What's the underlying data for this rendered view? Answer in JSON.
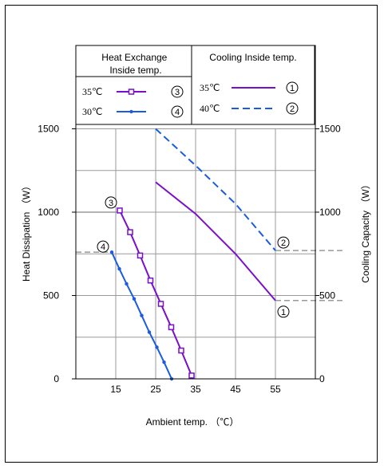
{
  "chart_data": {
    "type": "line",
    "xlabel": "Ambient temp. （℃）",
    "ylabel_left": "Heat Dissipation （W）",
    "ylabel_right": "Cooling Capacity （W）",
    "x_ticks": [
      "15",
      "25",
      "35",
      "45",
      "55"
    ],
    "xlim": [
      5,
      65
    ],
    "left_y_ticks": [
      "0",
      "500",
      "1000",
      "1500"
    ],
    "right_y_ticks": [
      "0",
      "500",
      "1000",
      "1500"
    ],
    "ylim": [
      0,
      2000
    ],
    "grid": true,
    "legend": {
      "heat_exchange_title": "Heat Exchange\nInside temp.",
      "cooling_title": "Cooling Inside temp.",
      "placement": "top"
    },
    "series": [
      {
        "id": "1",
        "marker_label": "①",
        "group": "cooling",
        "name": "35℃",
        "color": "#7a0fc9",
        "dash": "solid",
        "marker": "none",
        "x": [
          25,
          35,
          45,
          55
        ],
        "y": [
          1180,
          990,
          750,
          470
        ]
      },
      {
        "id": "2",
        "marker_label": "②",
        "group": "cooling",
        "name": "40℃",
        "color": "#1a5be0",
        "dash": "dashed",
        "marker": "none",
        "x": [
          25,
          35,
          45,
          55
        ],
        "y": [
          1500,
          1280,
          1050,
          770
        ]
      },
      {
        "id": "3",
        "marker_label": "③",
        "group": "heat",
        "name": "35℃",
        "color": "#7a0fc9",
        "dash": "solid",
        "marker": "square",
        "x": [
          16,
          18.6,
          21.1,
          23.7,
          26.3,
          28.9,
          31.4,
          34
        ],
        "y": [
          1010,
          880,
          740,
          590,
          450,
          310,
          170,
          20
        ]
      },
      {
        "id": "4",
        "marker_label": "④",
        "group": "heat",
        "name": "30℃",
        "color": "#1a5be0",
        "dash": "solid",
        "marker": "dot",
        "x": [
          14,
          15.9,
          17.7,
          19.6,
          21.5,
          23.4,
          25.3,
          27.1,
          29
        ],
        "y": [
          760,
          660,
          570,
          480,
          380,
          280,
          190,
          100,
          0
        ]
      }
    ],
    "reference_lines": [
      {
        "series": "3",
        "y": 1000,
        "style": "solid-gray",
        "side": "left"
      },
      {
        "series": "4",
        "y": 760,
        "style": "dashed-gray",
        "side": "left"
      },
      {
        "series": "2",
        "y": 770,
        "style": "dashed-gray",
        "side": "right"
      },
      {
        "series": "1",
        "y": 470,
        "style": "dashed-gray",
        "side": "right"
      }
    ]
  }
}
